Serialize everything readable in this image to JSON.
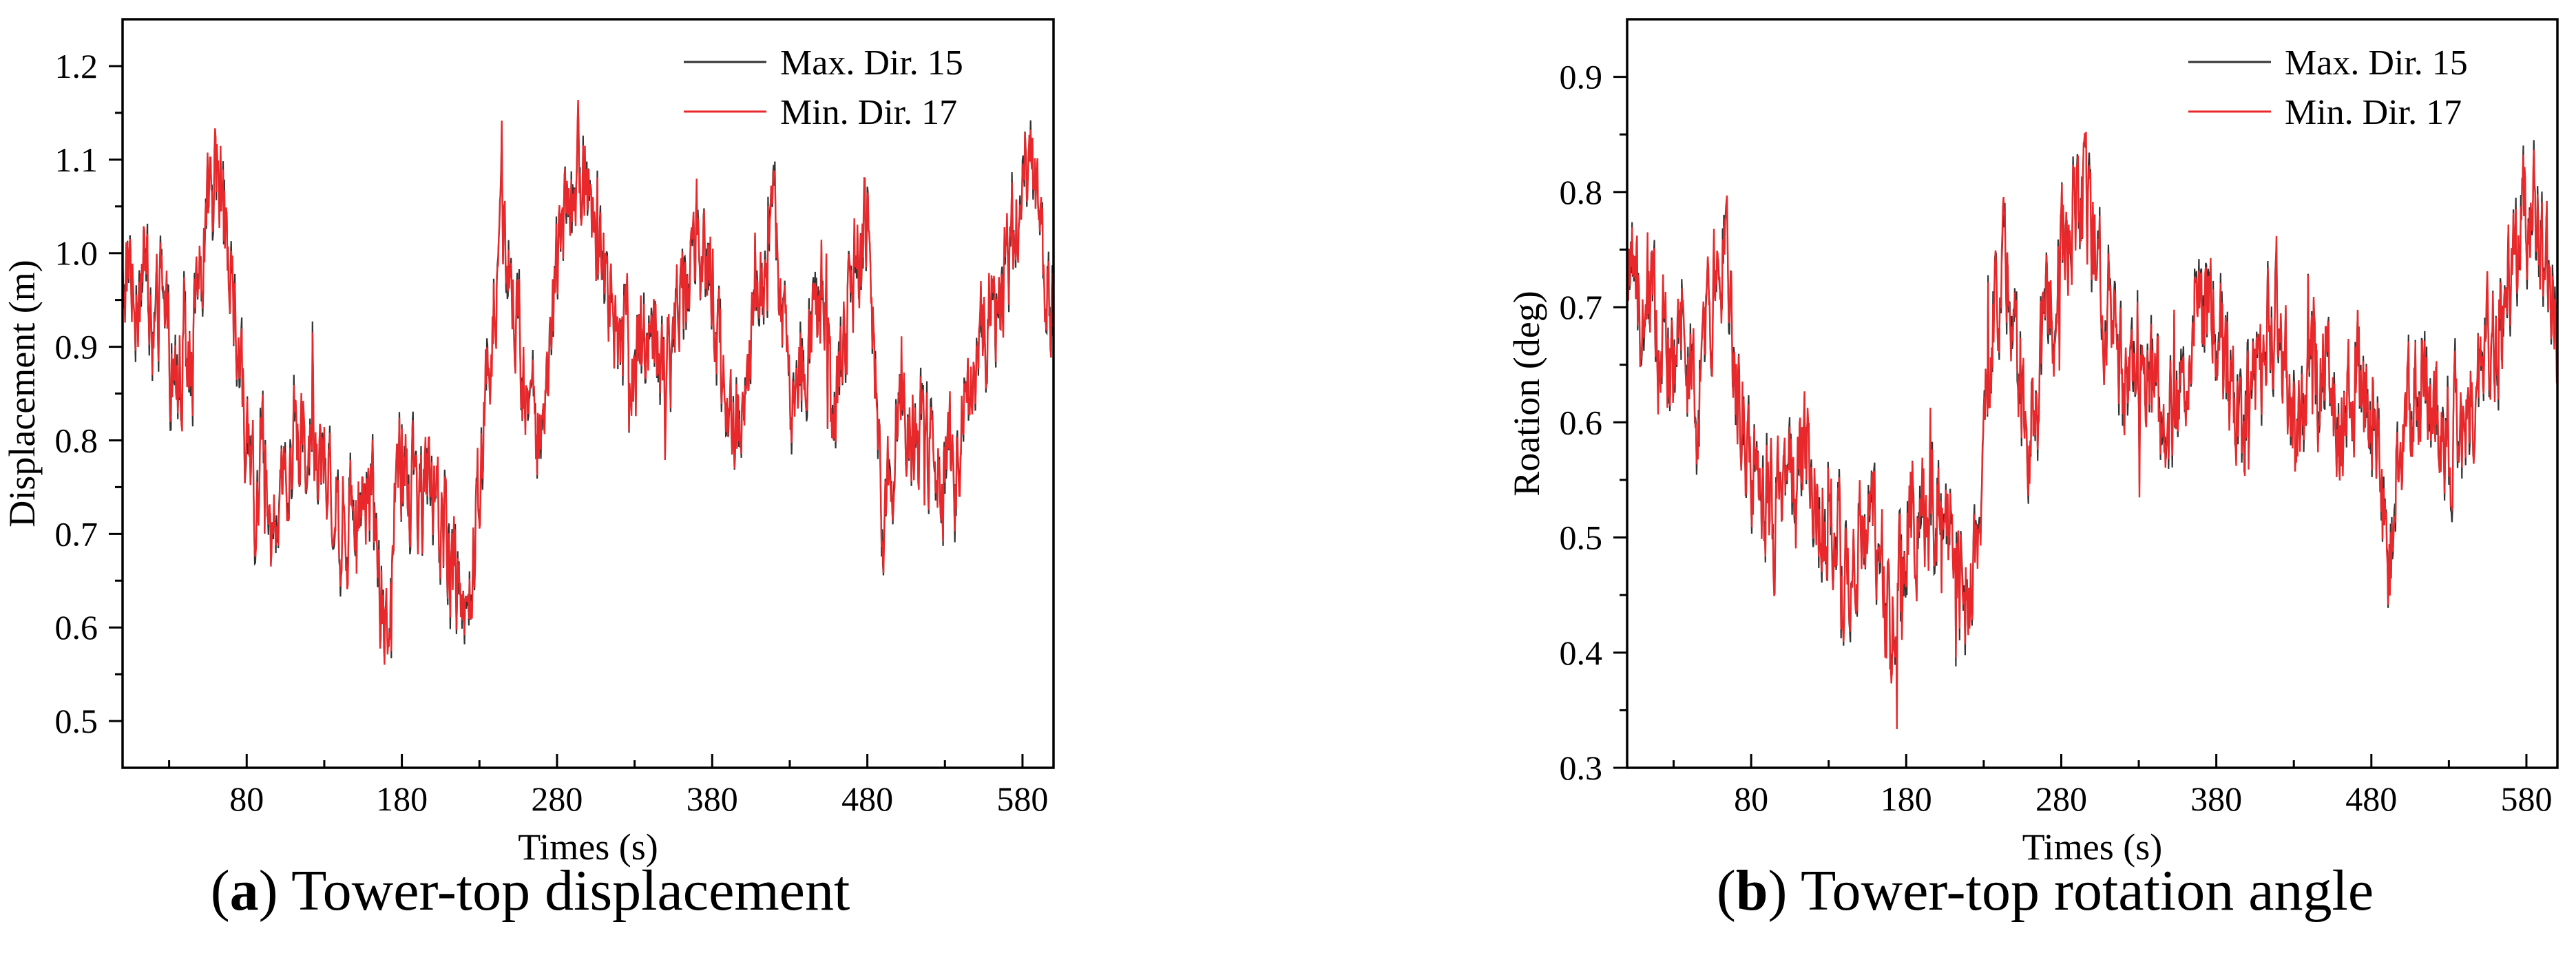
{
  "chart_data": [
    {
      "type": "line",
      "caption_letter": "a",
      "caption_text": "Tower-top displacement",
      "xlabel": "Times (s)",
      "ylabel": "Displacement (m)",
      "xlim": [
        0,
        600
      ],
      "ylim": [
        0.45,
        1.25
      ],
      "xticks": [
        80,
        180,
        280,
        380,
        480,
        580
      ],
      "yticks": [
        0.5,
        0.6,
        0.7,
        0.8,
        0.9,
        1.0,
        1.1,
        1.2
      ],
      "ytick_labels": [
        "0.5",
        "0.6",
        "0.7",
        "0.8",
        "0.9",
        "1.0",
        "1.1",
        "1.2"
      ],
      "series": [
        {
          "name": "Max. Dir. 15",
          "color": "#333333"
        },
        {
          "name": "Min. Dir. 17",
          "color": "#e8282b"
        }
      ],
      "trend": {
        "x": [
          0,
          5,
          10,
          15,
          20,
          25,
          30,
          35,
          40,
          45,
          50,
          55,
          60,
          65,
          70,
          75,
          80,
          85,
          90,
          95,
          100,
          110,
          120,
          130,
          140,
          150,
          160,
          165,
          170,
          175,
          180,
          190,
          200,
          210,
          215,
          220,
          225,
          230,
          235,
          240,
          245,
          250,
          255,
          260,
          265,
          270,
          275,
          280,
          285,
          290,
          295,
          300,
          305,
          310,
          315,
          320,
          330,
          340,
          350,
          360,
          370,
          380,
          390,
          395,
          400,
          410,
          420,
          425,
          430,
          440,
          450,
          460,
          470,
          480,
          485,
          490,
          495,
          500,
          510,
          520,
          530,
          540,
          550,
          560,
          570,
          575,
          580,
          585,
          590,
          595,
          600
        ],
        "y": [
          0.97,
          1.0,
          0.96,
          0.98,
          0.91,
          0.95,
          0.9,
          0.85,
          0.93,
          0.88,
          0.96,
          1.03,
          1.1,
          1.04,
          0.96,
          0.86,
          0.8,
          0.75,
          0.78,
          0.7,
          0.74,
          0.8,
          0.82,
          0.78,
          0.71,
          0.73,
          0.76,
          0.66,
          0.62,
          0.72,
          0.78,
          0.73,
          0.75,
          0.68,
          0.66,
          0.65,
          0.68,
          0.75,
          0.87,
          0.97,
          1.02,
          0.99,
          0.92,
          0.84,
          0.8,
          0.83,
          0.9,
          0.98,
          1.04,
          1.08,
          1.1,
          1.08,
          1.03,
          0.97,
          0.94,
          0.91,
          0.88,
          0.92,
          0.87,
          0.94,
          1.02,
          0.98,
          0.82,
          0.78,
          0.87,
          0.95,
          1.03,
          0.94,
          0.86,
          0.88,
          0.92,
          0.85,
          0.97,
          1.02,
          0.88,
          0.7,
          0.76,
          0.85,
          0.8,
          0.79,
          0.77,
          0.82,
          0.88,
          0.95,
          0.98,
          1.04,
          1.07,
          1.1,
          1.05,
          0.98,
          0.94
        ]
      },
      "noise_amplitude": 0.05
    },
    {
      "type": "line",
      "caption_letter": "b",
      "caption_text": "Tower-top rotation angle",
      "xlabel": "Times (s)",
      "ylabel": "Roation (deg)",
      "xlim": [
        0,
        600
      ],
      "ylim": [
        0.3,
        0.95
      ],
      "xticks": [
        80,
        180,
        280,
        380,
        480,
        580
      ],
      "yticks": [
        0.3,
        0.4,
        0.5,
        0.6,
        0.7,
        0.8,
        0.9
      ],
      "ytick_labels": [
        "0.3",
        "0.4",
        "0.5",
        "0.6",
        "0.7",
        "0.8",
        "0.9"
      ],
      "series": [
        {
          "name": "Max. Dir. 15",
          "color": "#333333"
        },
        {
          "name": "Min. Dir. 17",
          "color": "#e8282b"
        }
      ],
      "trend": {
        "x": [
          0,
          5,
          10,
          15,
          20,
          25,
          30,
          35,
          40,
          45,
          50,
          55,
          60,
          65,
          70,
          75,
          80,
          85,
          90,
          95,
          100,
          110,
          120,
          130,
          140,
          150,
          160,
          165,
          170,
          175,
          180,
          190,
          200,
          210,
          215,
          220,
          225,
          230,
          235,
          240,
          245,
          250,
          255,
          260,
          265,
          270,
          275,
          280,
          285,
          290,
          295,
          300,
          305,
          310,
          315,
          320,
          330,
          340,
          350,
          360,
          370,
          380,
          390,
          395,
          400,
          410,
          420,
          425,
          430,
          440,
          450,
          460,
          470,
          480,
          485,
          490,
          495,
          500,
          510,
          520,
          530,
          540,
          550,
          560,
          570,
          575,
          580,
          585,
          590,
          595,
          600
        ],
        "y": [
          0.72,
          0.73,
          0.68,
          0.7,
          0.66,
          0.69,
          0.62,
          0.7,
          0.64,
          0.6,
          0.68,
          0.72,
          0.76,
          0.72,
          0.66,
          0.6,
          0.56,
          0.52,
          0.55,
          0.5,
          0.56,
          0.58,
          0.55,
          0.52,
          0.48,
          0.5,
          0.52,
          0.46,
          0.42,
          0.47,
          0.52,
          0.51,
          0.53,
          0.5,
          0.47,
          0.46,
          0.5,
          0.58,
          0.66,
          0.72,
          0.74,
          0.7,
          0.62,
          0.6,
          0.63,
          0.68,
          0.7,
          0.74,
          0.77,
          0.8,
          0.79,
          0.76,
          0.72,
          0.7,
          0.67,
          0.65,
          0.62,
          0.64,
          0.6,
          0.65,
          0.72,
          0.69,
          0.62,
          0.57,
          0.62,
          0.66,
          0.7,
          0.64,
          0.6,
          0.62,
          0.64,
          0.59,
          0.63,
          0.62,
          0.56,
          0.45,
          0.52,
          0.6,
          0.64,
          0.62,
          0.58,
          0.6,
          0.64,
          0.68,
          0.72,
          0.76,
          0.78,
          0.8,
          0.76,
          0.72,
          0.68
        ]
      },
      "noise_amplitude": 0.045
    }
  ]
}
